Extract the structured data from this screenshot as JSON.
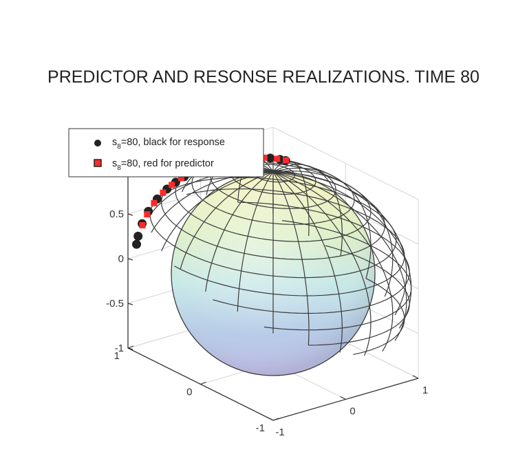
{
  "chart_data": {
    "type": "scatter",
    "title": "PREDICTOR AND RESONSE REALIZATIONS. TIME 80",
    "surface": "unit-sphere",
    "xlim": [
      -1,
      1
    ],
    "ylim": [
      -1,
      1
    ],
    "zlim": [
      -1,
      1
    ],
    "grid": true,
    "legend_position": "top-left",
    "x_ticks": [
      "-1",
      "0",
      "1"
    ],
    "y_ticks": [
      "-1",
      "0",
      "1"
    ],
    "z_ticks": [
      "-1",
      "-0.5",
      "0",
      "0.5"
    ],
    "series": [
      {
        "legend_main": "s",
        "legend_sub": "8",
        "legend_rest": "=80, black for response",
        "color": "#222222",
        "marker": "circle",
        "points": [
          [
            0.35,
            0.22,
            0.93
          ],
          [
            0.33,
            0.26,
            0.91
          ],
          [
            0.3,
            0.33,
            0.9
          ],
          [
            0.26,
            0.4,
            0.88
          ],
          [
            0.2,
            0.47,
            0.86
          ],
          [
            0.14,
            0.55,
            0.83
          ],
          [
            0.08,
            0.62,
            0.78
          ],
          [
            0.03,
            0.68,
            0.73
          ],
          [
            -0.02,
            0.72,
            0.69
          ],
          [
            -0.08,
            0.74,
            0.67
          ],
          [
            -0.15,
            0.76,
            0.63
          ],
          [
            -0.22,
            0.78,
            0.59
          ],
          [
            -0.3,
            0.79,
            0.54
          ],
          [
            -0.4,
            0.79,
            0.47
          ],
          [
            -0.5,
            0.78,
            0.38
          ],
          [
            -0.58,
            0.76,
            0.29
          ],
          [
            -0.65,
            0.73,
            0.2
          ],
          [
            -0.7,
            0.7,
            0.15
          ]
        ]
      },
      {
        "legend_main": "s",
        "legend_sub": "8",
        "legend_rest": "=80, red for predictor",
        "color": "#ff2a2a",
        "marker": "square",
        "points": [
          [
            0.38,
            0.25,
            0.89
          ],
          [
            0.34,
            0.3,
            0.89
          ],
          [
            0.28,
            0.37,
            0.88
          ],
          [
            0.2,
            0.43,
            0.88
          ],
          [
            0.12,
            0.5,
            0.86
          ],
          [
            0.06,
            0.58,
            0.81
          ],
          [
            0.01,
            0.64,
            0.77
          ],
          [
            -0.04,
            0.68,
            0.73
          ],
          [
            -0.12,
            0.71,
            0.69
          ],
          [
            -0.2,
            0.74,
            0.64
          ],
          [
            -0.28,
            0.76,
            0.59
          ],
          [
            -0.36,
            0.77,
            0.53
          ],
          [
            -0.46,
            0.76,
            0.46
          ],
          [
            -0.56,
            0.73,
            0.39
          ],
          [
            -0.64,
            0.7,
            0.32
          ]
        ]
      }
    ]
  }
}
